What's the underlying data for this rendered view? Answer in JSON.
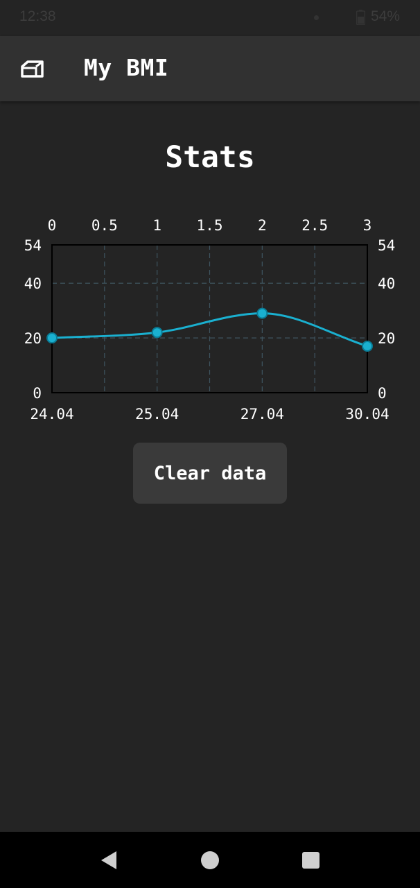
{
  "status_bar": {
    "time": "12:38",
    "battery": "54%",
    "icons": [
      "notification-dot-icon",
      "battery-icon"
    ]
  },
  "app_bar": {
    "title": "My BMI",
    "home_icon": "home-icon"
  },
  "page": {
    "heading": "Stats"
  },
  "chart_data": {
    "type": "line",
    "x": [
      0,
      1,
      2,
      3
    ],
    "series": [
      {
        "values": [
          20,
          22,
          29,
          17
        ],
        "color": "#1ab0d0"
      }
    ],
    "bottom_tick_labels": [
      "24.04",
      "25.04",
      "27.04",
      "30.04"
    ],
    "top_tick_labels": [
      "0",
      "0.5",
      "1",
      "1.5",
      "2",
      "2.5",
      "3"
    ],
    "top_ticks": [
      0,
      0.5,
      1,
      1.5,
      2,
      2.5,
      3
    ],
    "y_ticks": [
      0,
      20,
      40,
      54
    ],
    "y_tick_labels": [
      "0",
      "20",
      "40",
      "54"
    ],
    "xlim": [
      0,
      3
    ],
    "ylim": [
      0,
      54
    ],
    "grid": true,
    "curve": "smooth"
  },
  "actions": {
    "clear_label": "Clear data"
  },
  "nav_bar": {
    "icons": [
      "back-icon",
      "home-circle-icon",
      "recent-apps-icon"
    ]
  },
  "colors": {
    "background": "#242424",
    "app_bar": "#313131",
    "accent": "#1ab0d0",
    "button": "#3a3a3a",
    "grid": "#3f5560"
  }
}
